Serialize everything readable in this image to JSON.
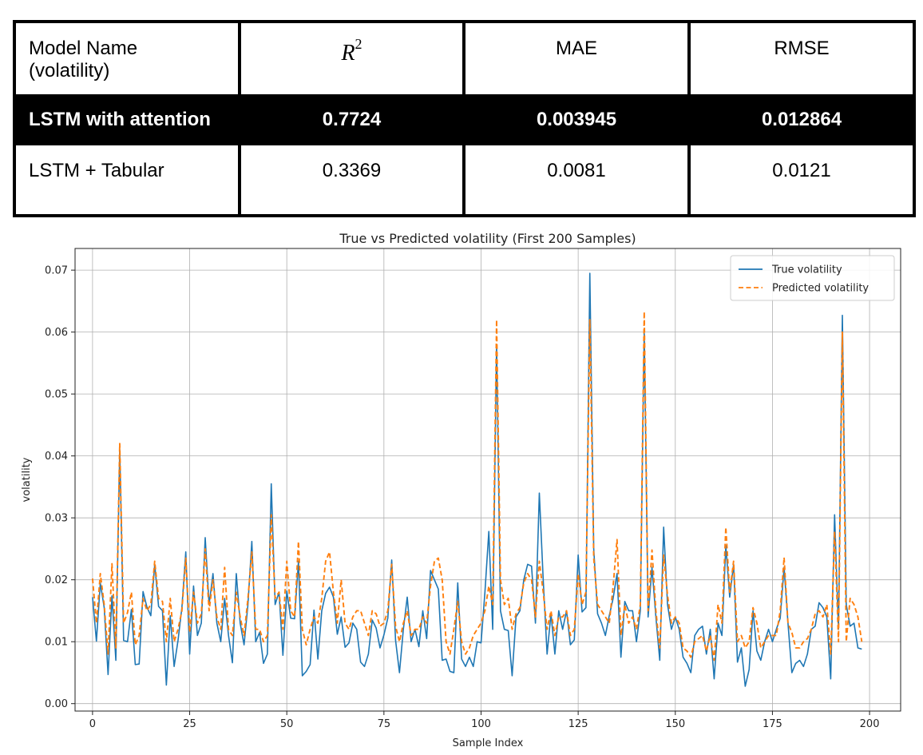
{
  "table": {
    "headers": {
      "model": "Model Name\n(volatility)",
      "r2_base": "R",
      "r2_sup": "2",
      "mae": "MAE",
      "rmse": "RMSE"
    },
    "rows": [
      {
        "model": "LSTM with attention",
        "r2": "0.7724",
        "mae": "0.003945",
        "rmse": "0.012864"
      },
      {
        "model": "LSTM + Tabular",
        "r2": "0.3369",
        "mae": "0.0081",
        "rmse": "0.0121"
      }
    ]
  },
  "chart_data": {
    "type": "line",
    "title": "True vs Predicted volatility (First 200 Samples)",
    "xlabel": "Sample Index",
    "ylabel": "volatility",
    "xlim": [
      -4.5,
      208
    ],
    "ylim": [
      -0.0012,
      0.0735
    ],
    "xticks": [
      0,
      25,
      50,
      75,
      100,
      125,
      150,
      175,
      200
    ],
    "yticks": [
      0.0,
      0.01,
      0.02,
      0.03,
      0.04,
      0.05,
      0.06,
      0.07
    ],
    "ytick_labels": [
      "0.00",
      "0.01",
      "0.02",
      "0.03",
      "0.04",
      "0.05",
      "0.06",
      "0.07"
    ],
    "grid": true,
    "legend": "top-right",
    "colors": {
      "true": "#1f77b4",
      "pred": "#ff7f0e"
    },
    "series": [
      {
        "name": "True volatility",
        "style": "solid",
        "values": [
          0.0172,
          0.0101,
          0.0195,
          0.0155,
          0.0047,
          0.0174,
          0.007,
          0.041,
          0.0102,
          0.01,
          0.0152,
          0.0063,
          0.0064,
          0.0181,
          0.0156,
          0.0142,
          0.0225,
          0.0157,
          0.015,
          0.003,
          0.0142,
          0.006,
          0.0102,
          0.0155,
          0.0245,
          0.008,
          0.019,
          0.011,
          0.013,
          0.0268,
          0.016,
          0.021,
          0.013,
          0.01,
          0.017,
          0.011,
          0.0066,
          0.021,
          0.013,
          0.0095,
          0.016,
          0.0262,
          0.01,
          0.0115,
          0.0065,
          0.008,
          0.0355,
          0.016,
          0.018,
          0.0078,
          0.0182,
          0.0138,
          0.0137,
          0.023,
          0.0045,
          0.0052,
          0.0063,
          0.0151,
          0.0072,
          0.015,
          0.0178,
          0.0188,
          0.0172,
          0.0112,
          0.014,
          0.0091,
          0.0098,
          0.013,
          0.012,
          0.0067,
          0.006,
          0.008,
          0.0135,
          0.0122,
          0.009,
          0.0111,
          0.0138,
          0.0232,
          0.0102,
          0.005,
          0.012,
          0.0172,
          0.01,
          0.012,
          0.0092,
          0.015,
          0.0105,
          0.0215,
          0.02,
          0.0185,
          0.007,
          0.0072,
          0.0052,
          0.005,
          0.0195,
          0.0072,
          0.006,
          0.0075,
          0.006,
          0.01,
          0.0098,
          0.018,
          0.0278,
          0.012,
          0.058,
          0.015,
          0.012,
          0.0118,
          0.0045,
          0.014,
          0.015,
          0.02,
          0.0225,
          0.0222,
          0.013,
          0.034,
          0.02,
          0.008,
          0.0145,
          0.008,
          0.015,
          0.012,
          0.015,
          0.0095,
          0.0103,
          0.024,
          0.0148,
          0.0155,
          0.0695,
          0.025,
          0.0145,
          0.013,
          0.011,
          0.0142,
          0.017,
          0.021,
          0.0075,
          0.0165,
          0.015,
          0.015,
          0.01,
          0.015,
          0.06,
          0.014,
          0.022,
          0.014,
          0.007,
          0.0285,
          0.016,
          0.012,
          0.014,
          0.012,
          0.0075,
          0.0065,
          0.005,
          0.011,
          0.012,
          0.0125,
          0.008,
          0.012,
          0.004,
          0.013,
          0.011,
          0.0255,
          0.0172,
          0.0225,
          0.0067,
          0.009,
          0.0028,
          0.0055,
          0.015,
          0.0085,
          0.007,
          0.01,
          0.012,
          0.01,
          0.012,
          0.0138,
          0.022,
          0.013,
          0.005,
          0.0065,
          0.007,
          0.006,
          0.008,
          0.012,
          0.0125,
          0.0163,
          0.0155,
          0.014,
          0.004,
          0.0305,
          0.012,
          0.0627,
          0.016,
          0.0125,
          0.013,
          0.009,
          0.0088
        ]
      },
      {
        "name": "Predicted volatility",
        "style": "dashed",
        "values": [
          0.0202,
          0.013,
          0.021,
          0.016,
          0.008,
          0.0226,
          0.009,
          0.042,
          0.013,
          0.0147,
          0.018,
          0.0095,
          0.011,
          0.017,
          0.015,
          0.016,
          0.023,
          0.017,
          0.0165,
          0.01,
          0.017,
          0.01,
          0.012,
          0.015,
          0.0235,
          0.0115,
          0.018,
          0.013,
          0.0145,
          0.025,
          0.015,
          0.02,
          0.014,
          0.012,
          0.022,
          0.012,
          0.011,
          0.018,
          0.014,
          0.011,
          0.017,
          0.0245,
          0.012,
          0.012,
          0.01,
          0.011,
          0.0305,
          0.017,
          0.018,
          0.012,
          0.023,
          0.015,
          0.014,
          0.0262,
          0.012,
          0.0095,
          0.012,
          0.014,
          0.013,
          0.017,
          0.023,
          0.0245,
          0.018,
          0.013,
          0.02,
          0.013,
          0.012,
          0.014,
          0.015,
          0.015,
          0.013,
          0.011,
          0.015,
          0.0145,
          0.0125,
          0.013,
          0.015,
          0.0225,
          0.0125,
          0.01,
          0.013,
          0.015,
          0.011,
          0.012,
          0.012,
          0.014,
          0.013,
          0.019,
          0.023,
          0.0235,
          0.02,
          0.01,
          0.008,
          0.012,
          0.0165,
          0.01,
          0.008,
          0.009,
          0.011,
          0.012,
          0.013,
          0.015,
          0.019,
          0.016,
          0.062,
          0.02,
          0.016,
          0.017,
          0.012,
          0.0145,
          0.0155,
          0.0195,
          0.021,
          0.02,
          0.014,
          0.023,
          0.018,
          0.012,
          0.015,
          0.011,
          0.014,
          0.014,
          0.015,
          0.011,
          0.012,
          0.021,
          0.016,
          0.018,
          0.062,
          0.0235,
          0.016,
          0.015,
          0.014,
          0.013,
          0.019,
          0.0265,
          0.011,
          0.016,
          0.013,
          0.014,
          0.012,
          0.016,
          0.0633,
          0.015,
          0.0248,
          0.015,
          0.009,
          0.024,
          0.0175,
          0.013,
          0.014,
          0.013,
          0.009,
          0.0085,
          0.0075,
          0.01,
          0.0105,
          0.011,
          0.0085,
          0.011,
          0.007,
          0.016,
          0.013,
          0.0285,
          0.018,
          0.023,
          0.01,
          0.011,
          0.009,
          0.01,
          0.0155,
          0.013,
          0.009,
          0.01,
          0.011,
          0.011,
          0.011,
          0.015,
          0.0236,
          0.013,
          0.0115,
          0.009,
          0.009,
          0.01,
          0.0105,
          0.012,
          0.0145,
          0.015,
          0.014,
          0.016,
          0.008,
          0.0278,
          0.01,
          0.06,
          0.01,
          0.017,
          0.016,
          0.014,
          0.01
        ]
      }
    ]
  }
}
